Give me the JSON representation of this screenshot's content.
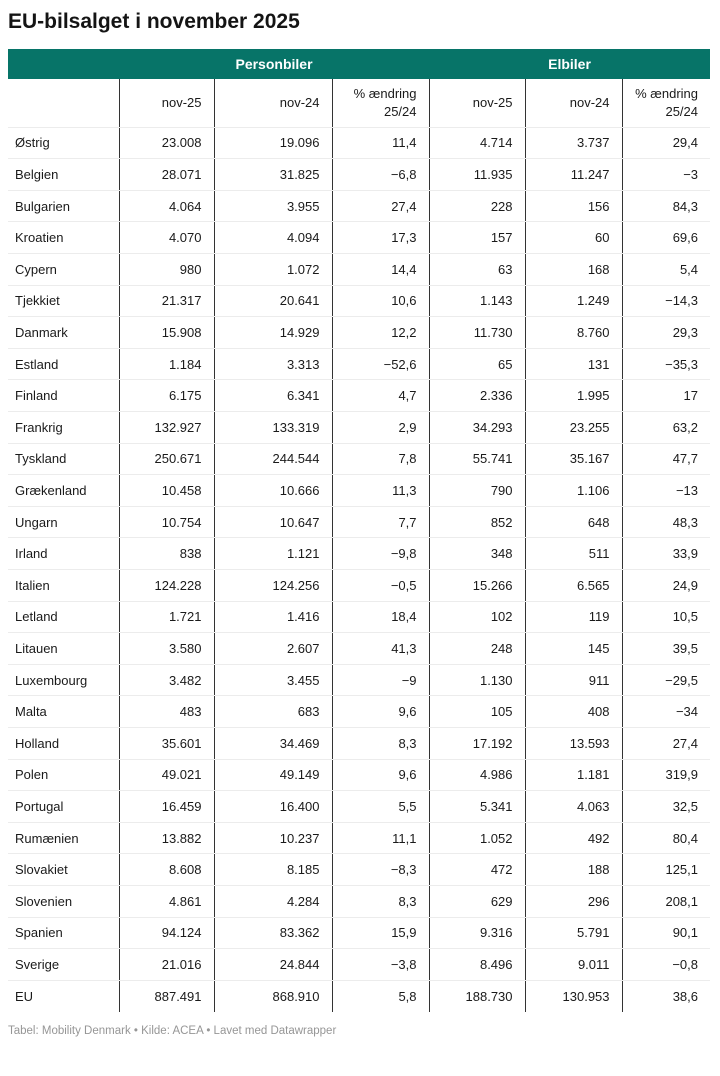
{
  "title": "EU-bilsalget i november 2025",
  "footer": "Tabel: Mobility Denmark • Kilde: ACEA • Lavet med Datawrapper",
  "colors": {
    "group_header_bg": "#077468",
    "group_header_text": "#ffffff",
    "column_divider": "#333333",
    "row_divider": "#ececec",
    "body_text": "#1a1a1a",
    "footer_text": "#969696"
  },
  "chart_data": {
    "type": "table",
    "title": "EU-bilsalget i november 2025",
    "groups": [
      "Personbiler",
      "Elbiler"
    ],
    "columns": [
      "",
      "nov-25",
      "nov-24",
      "% ændring 25/24",
      "nov-25",
      "nov-24",
      "% ændring 25/24"
    ],
    "rows": [
      [
        "Østrig",
        "23.008",
        "19.096",
        "11,4",
        "4.714",
        "3.737",
        "29,4"
      ],
      [
        "Belgien",
        "28.071",
        "31.825",
        "−6,8",
        "11.935",
        "11.247",
        "−3"
      ],
      [
        "Bulgarien",
        "4.064",
        "3.955",
        "27,4",
        "228",
        "156",
        "84,3"
      ],
      [
        "Kroatien",
        "4.070",
        "4.094",
        "17,3",
        "157",
        "60",
        "69,6"
      ],
      [
        "Cypern",
        "980",
        "1.072",
        "14,4",
        "63",
        "168",
        "5,4"
      ],
      [
        "Tjekkiet",
        "21.317",
        "20.641",
        "10,6",
        "1.143",
        "1.249",
        "−14,3"
      ],
      [
        "Danmark",
        "15.908",
        "14.929",
        "12,2",
        "11.730",
        "8.760",
        "29,3"
      ],
      [
        "Estland",
        "1.184",
        "3.313",
        "−52,6",
        "65",
        "131",
        "−35,3"
      ],
      [
        "Finland",
        "6.175",
        "6.341",
        "4,7",
        "2.336",
        "1.995",
        "17"
      ],
      [
        "Frankrig",
        "132.927",
        "133.319",
        "2,9",
        "34.293",
        "23.255",
        "63,2"
      ],
      [
        "Tyskland",
        "250.671",
        "244.544",
        "7,8",
        "55.741",
        "35.167",
        "47,7"
      ],
      [
        "Grækenland",
        "10.458",
        "10.666",
        "11,3",
        "790",
        "1.106",
        "−13"
      ],
      [
        "Ungarn",
        "10.754",
        "10.647",
        "7,7",
        "852",
        "648",
        "48,3"
      ],
      [
        "Irland",
        "838",
        "1.121",
        "−9,8",
        "348",
        "511",
        "33,9"
      ],
      [
        "Italien",
        "124.228",
        "124.256",
        "−0,5",
        "15.266",
        "6.565",
        "24,9"
      ],
      [
        "Letland",
        "1.721",
        "1.416",
        "18,4",
        "102",
        "119",
        "10,5"
      ],
      [
        "Litauen",
        "3.580",
        "2.607",
        "41,3",
        "248",
        "145",
        "39,5"
      ],
      [
        "Luxembourg",
        "3.482",
        "3.455",
        "−9",
        "1.130",
        "911",
        "−29,5"
      ],
      [
        "Malta",
        "483",
        "683",
        "9,6",
        "105",
        "408",
        "−34"
      ],
      [
        "Holland",
        "35.601",
        "34.469",
        "8,3",
        "17.192",
        "13.593",
        "27,4"
      ],
      [
        "Polen",
        "49.021",
        "49.149",
        "9,6",
        "4.986",
        "1.181",
        "319,9"
      ],
      [
        "Portugal",
        "16.459",
        "16.400",
        "5,5",
        "5.341",
        "4.063",
        "32,5"
      ],
      [
        "Rumænien",
        "13.882",
        "10.237",
        "11,1",
        "1.052",
        "492",
        "80,4"
      ],
      [
        "Slovakiet",
        "8.608",
        "8.185",
        "−8,3",
        "472",
        "188",
        "125,1"
      ],
      [
        "Slovenien",
        "4.861",
        "4.284",
        "8,3",
        "629",
        "296",
        "208,1"
      ],
      [
        "Spanien",
        "94.124",
        "83.362",
        "15,9",
        "9.316",
        "5.791",
        "90,1"
      ],
      [
        "Sverige",
        "21.016",
        "24.844",
        "−3,8",
        "8.496",
        "9.011",
        "−0,8"
      ],
      [
        "EU",
        "887.491",
        "868.910",
        "5,8",
        "188.730",
        "130.953",
        "38,6"
      ]
    ]
  }
}
